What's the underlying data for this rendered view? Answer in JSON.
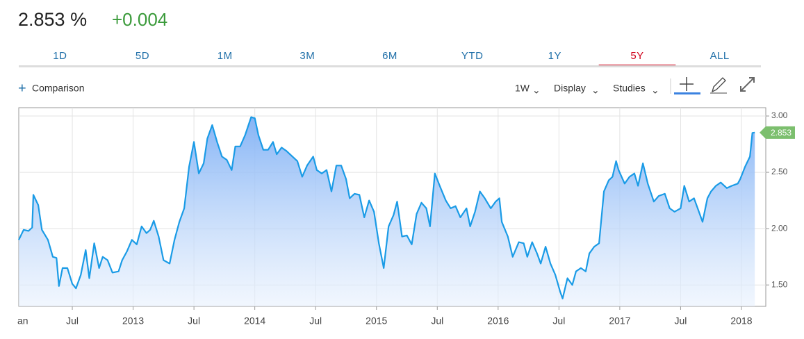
{
  "header": {
    "price": "2.853 %",
    "change": "+0.004"
  },
  "tabs": [
    "1D",
    "5D",
    "1M",
    "3M",
    "6M",
    "YTD",
    "1Y",
    "5Y",
    "ALL"
  ],
  "active_tab": "5Y",
  "toolbar": {
    "comparison": "Comparison",
    "interval": "1W",
    "display": "Display",
    "studies": "Studies"
  },
  "chart_data": {
    "type": "area",
    "color": "#1a9be6",
    "grid": true,
    "x": [
      2012.06,
      2012.1,
      2012.14,
      2012.17,
      2012.18,
      2012.22,
      2012.25,
      2012.3,
      2012.34,
      2012.37,
      2012.39,
      2012.42,
      2012.46,
      2012.5,
      2012.53,
      2012.57,
      2012.61,
      2012.64,
      2012.68,
      2012.72,
      2012.75,
      2012.79,
      2012.83,
      2012.88,
      2012.91,
      2012.95,
      2012.99,
      2013.03,
      2013.07,
      2013.11,
      2013.14,
      2013.17,
      2013.21,
      2013.25,
      2013.3,
      2013.34,
      2013.38,
      2013.42,
      2013.46,
      2013.5,
      2013.54,
      2013.58,
      2013.61,
      2013.65,
      2013.69,
      2013.73,
      2013.77,
      2013.81,
      2013.84,
      2013.88,
      2013.92,
      2013.97,
      2014.0,
      2014.03,
      2014.07,
      2014.11,
      2014.15,
      2014.18,
      2014.22,
      2014.26,
      2014.31,
      2014.35,
      2014.39,
      2014.43,
      2014.48,
      2014.51,
      2014.55,
      2014.59,
      2014.63,
      2014.67,
      2014.71,
      2014.75,
      2014.78,
      2014.82,
      2014.86,
      2014.9,
      2014.94,
      2014.98,
      2015.02,
      2015.06,
      2015.1,
      2015.14,
      2015.17,
      2015.21,
      2015.25,
      2015.29,
      2015.33,
      2015.37,
      2015.41,
      2015.44,
      2015.48,
      2015.52,
      2015.57,
      2015.61,
      2015.65,
      2015.69,
      2015.74,
      2015.77,
      2015.81,
      2015.85,
      2015.89,
      2015.94,
      2015.98,
      2016.01,
      2016.03,
      2016.08,
      2016.12,
      2016.17,
      2016.21,
      2016.24,
      2016.28,
      2016.32,
      2016.35,
      2016.39,
      2016.43,
      2016.47,
      2016.51,
      2016.53,
      2016.57,
      2016.61,
      2016.64,
      2016.68,
      2016.72,
      2016.75,
      2016.79,
      2016.83,
      2016.87,
      2016.91,
      2016.94,
      2016.97,
      2016.99,
      2017.04,
      2017.08,
      2017.12,
      2017.15,
      2017.19,
      2017.23,
      2017.28,
      2017.32,
      2017.37,
      2017.41,
      2017.45,
      2017.5,
      2017.53,
      2017.57,
      2017.61,
      2017.64,
      2017.68,
      2017.72,
      2017.75,
      2017.79,
      2017.83,
      2017.88,
      2017.92,
      2017.97,
      2017.99,
      2018.03,
      2018.07,
      2018.09,
      2018.11
    ],
    "values": [
      1.9,
      1.99,
      1.98,
      2.01,
      2.3,
      2.21,
      1.99,
      1.9,
      1.75,
      1.74,
      1.49,
      1.65,
      1.65,
      1.51,
      1.47,
      1.59,
      1.81,
      1.56,
      1.87,
      1.65,
      1.75,
      1.72,
      1.61,
      1.62,
      1.72,
      1.8,
      1.9,
      1.86,
      2.02,
      1.96,
      1.99,
      2.07,
      1.93,
      1.72,
      1.69,
      1.9,
      2.06,
      2.18,
      2.55,
      2.77,
      2.49,
      2.58,
      2.8,
      2.92,
      2.77,
      2.64,
      2.61,
      2.52,
      2.73,
      2.73,
      2.83,
      2.99,
      2.98,
      2.83,
      2.7,
      2.7,
      2.77,
      2.66,
      2.72,
      2.69,
      2.64,
      2.6,
      2.46,
      2.56,
      2.64,
      2.52,
      2.49,
      2.52,
      2.33,
      2.56,
      2.56,
      2.44,
      2.27,
      2.31,
      2.3,
      2.1,
      2.25,
      2.15,
      1.87,
      1.65,
      2.02,
      2.12,
      2.24,
      1.93,
      1.94,
      1.86,
      2.13,
      2.23,
      2.18,
      2.02,
      2.49,
      2.38,
      2.25,
      2.18,
      2.2,
      2.1,
      2.18,
      2.02,
      2.15,
      2.33,
      2.27,
      2.18,
      2.24,
      2.27,
      2.06,
      1.93,
      1.75,
      1.88,
      1.87,
      1.75,
      1.88,
      1.78,
      1.69,
      1.84,
      1.69,
      1.59,
      1.44,
      1.38,
      1.56,
      1.5,
      1.62,
      1.65,
      1.62,
      1.78,
      1.84,
      1.87,
      2.33,
      2.43,
      2.46,
      2.6,
      2.52,
      2.4,
      2.46,
      2.49,
      2.38,
      2.58,
      2.4,
      2.24,
      2.29,
      2.31,
      2.18,
      2.15,
      2.18,
      2.38,
      2.24,
      2.27,
      2.18,
      2.06,
      2.27,
      2.33,
      2.38,
      2.41,
      2.36,
      2.38,
      2.4,
      2.44,
      2.55,
      2.64,
      2.85,
      2.853
    ],
    "xlim": [
      2012.06,
      2018.2
    ],
    "ylim": [
      1.31,
      3.074
    ],
    "xticks": [
      {
        "value": 2012.0,
        "label": "an"
      },
      {
        "value": 2012.5,
        "label": "Jul"
      },
      2013,
      {
        "value": 2013.5,
        "label": "Jul"
      },
      2014,
      {
        "value": 2014.5,
        "label": "Jul"
      },
      2015,
      {
        "value": 2015.5,
        "label": "Jul"
      },
      2016,
      {
        "value": 2016.5,
        "label": "Jul"
      },
      2017,
      {
        "value": 2017.5,
        "label": "Jul"
      },
      2018
    ],
    "yticks": [
      {
        "value": 1.5,
        "label": "1.50"
      },
      {
        "value": 2,
        "label": "2.00"
      },
      {
        "value": 2.5,
        "label": "2.50"
      },
      {
        "value": 3,
        "label": "3.00"
      }
    ]
  }
}
